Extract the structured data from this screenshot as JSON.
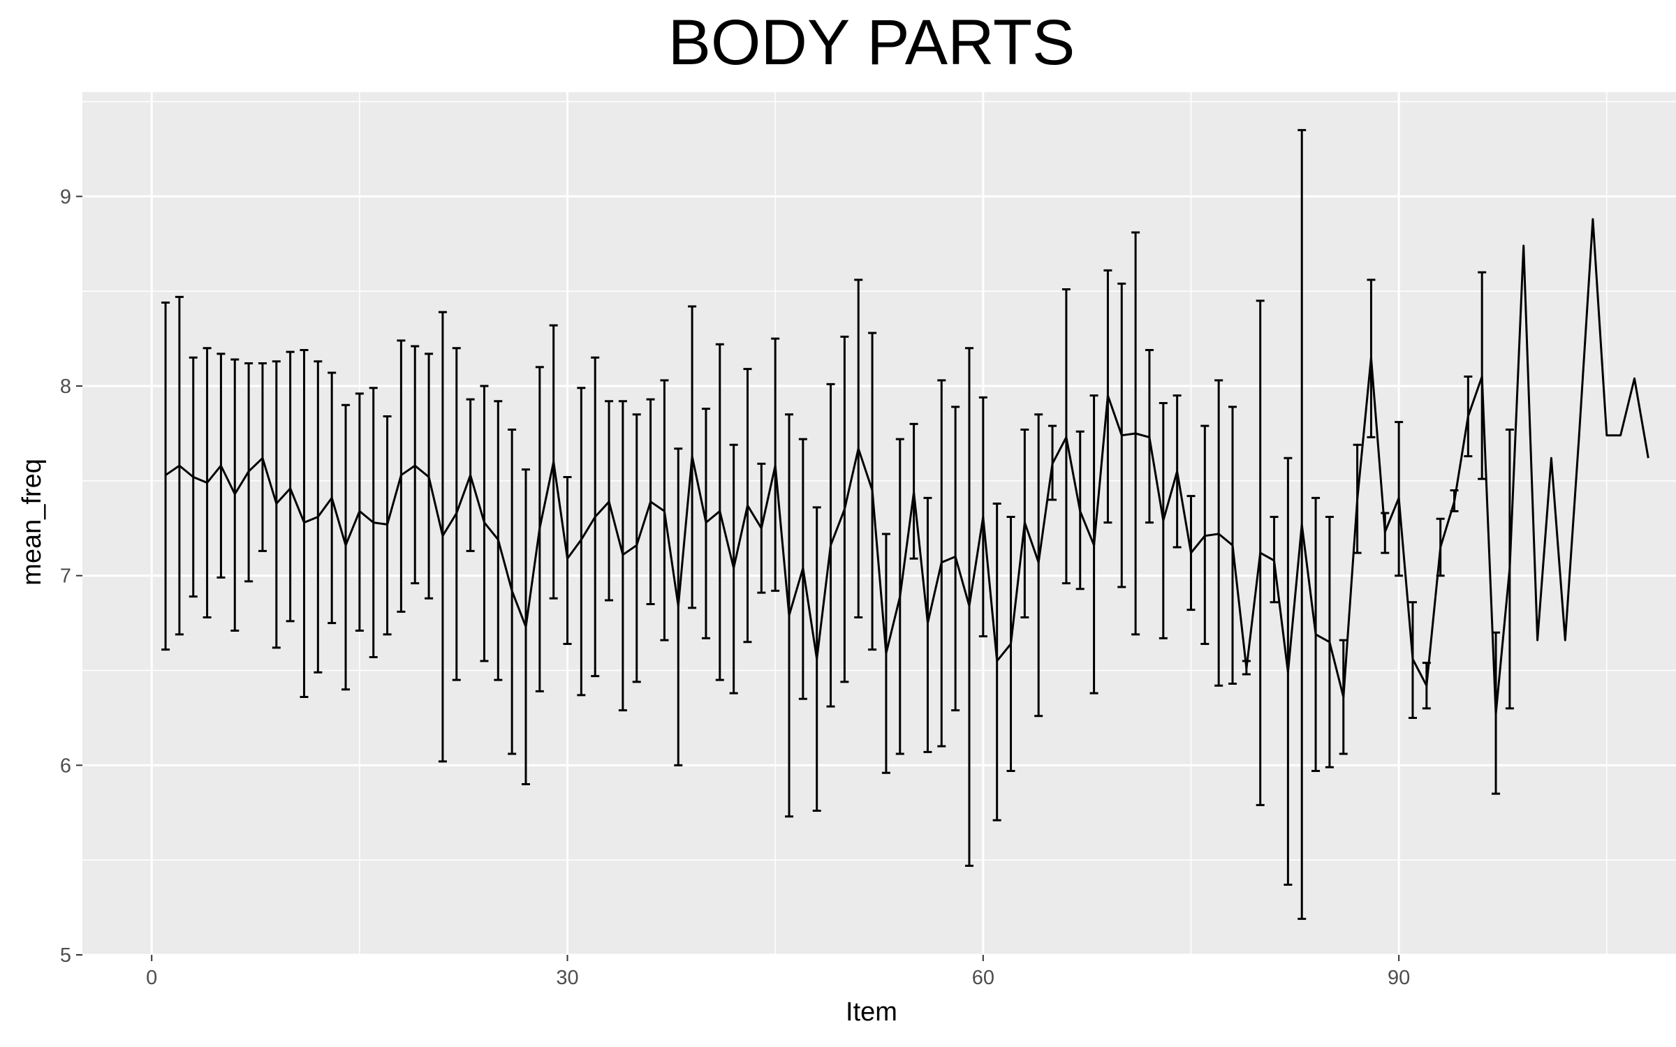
{
  "chart_data": {
    "type": "line",
    "title": "BODY PARTS",
    "xlabel": "Item",
    "ylabel": "mean_freq",
    "xlim": [
      -5,
      110
    ],
    "ylim": [
      5,
      9.55
    ],
    "x_ticks": [
      0,
      30,
      60,
      90
    ],
    "x_tick_labels": [
      "0",
      "30",
      "60",
      "90"
    ],
    "y_ticks": [
      5,
      6,
      7,
      8,
      9
    ],
    "y_tick_labels": [
      "5",
      "6",
      "7",
      "8",
      "9"
    ],
    "grid": true,
    "legend": "none",
    "colors": {
      "panel": "#ebebeb",
      "grid": "#ffffff",
      "line": "#000000",
      "tick_text": "#4d4d4d"
    },
    "series": [
      {
        "x": [
          1,
          2,
          3,
          4,
          5,
          6,
          7,
          8,
          9,
          10,
          11,
          12,
          13,
          14,
          15,
          16,
          17,
          18,
          19,
          20,
          21,
          22,
          23,
          24,
          25,
          26,
          27,
          28,
          29,
          30,
          31,
          32,
          33,
          34,
          35,
          36,
          37,
          38,
          39,
          40,
          41,
          42,
          43,
          44,
          45,
          46,
          47,
          48,
          49,
          50,
          51,
          52,
          53,
          54,
          55,
          56,
          57,
          58,
          59,
          60,
          61,
          62,
          63,
          64,
          65,
          66,
          67,
          68,
          69,
          70,
          71,
          72,
          73,
          74,
          75,
          76,
          77,
          78,
          79,
          80,
          81,
          82,
          83,
          84,
          85,
          86,
          87,
          88,
          89,
          90,
          91,
          92,
          93,
          94,
          95,
          96,
          97,
          98,
          99,
          100,
          101,
          102,
          103,
          104,
          105,
          106,
          107,
          108
        ],
        "y": [
          7.53,
          7.58,
          7.52,
          7.49,
          7.58,
          7.43,
          7.55,
          7.62,
          7.38,
          7.46,
          7.28,
          7.31,
          7.41,
          7.16,
          7.34,
          7.28,
          7.27,
          7.53,
          7.58,
          7.52,
          7.21,
          7.33,
          7.53,
          7.28,
          7.19,
          6.92,
          6.73,
          7.25,
          7.6,
          7.09,
          7.19,
          7.31,
          7.39,
          7.11,
          7.16,
          7.39,
          7.34,
          6.84,
          7.63,
          7.28,
          7.34,
          7.04,
          7.37,
          7.25,
          7.58,
          6.79,
          7.04,
          6.56,
          7.16,
          7.35,
          7.67,
          7.45,
          6.59,
          6.89,
          7.44,
          6.75,
          7.07,
          7.1,
          6.84,
          7.31,
          6.55,
          6.64,
          7.28,
          7.07,
          7.59,
          7.73,
          7.34,
          7.16,
          7.95,
          7.74,
          7.75,
          7.73,
          7.29,
          7.55,
          7.12,
          7.21,
          7.22,
          7.16,
          6.51,
          7.12,
          7.08,
          6.49,
          7.27,
          6.69,
          6.65,
          6.36,
          7.4,
          8.15,
          7.23,
          7.41,
          6.56,
          6.42,
          7.15,
          7.39,
          7.84,
          8.05,
          6.27,
          7.04,
          8.74,
          6.66,
          7.62,
          6.66,
          7.73,
          8.88,
          7.74,
          7.74,
          8.04,
          7.62
        ],
        "error_low": [
          6.61,
          6.69,
          6.89,
          6.78,
          6.99,
          6.71,
          6.97,
          7.13,
          6.62,
          6.76,
          6.36,
          6.49,
          6.75,
          6.4,
          6.71,
          6.57,
          6.69,
          6.81,
          6.96,
          6.88,
          6.02,
          6.45,
          7.13,
          6.55,
          6.45,
          6.06,
          5.9,
          6.39,
          6.88,
          6.64,
          6.37,
          6.47,
          6.87,
          6.29,
          6.44,
          6.85,
          6.66,
          6.0,
          6.83,
          6.67,
          6.45,
          6.38,
          6.65,
          6.91,
          6.92,
          5.73,
          6.35,
          5.76,
          6.31,
          6.44,
          6.78,
          6.61,
          5.96,
          6.06,
          7.09,
          6.07,
          6.1,
          6.29,
          5.47,
          6.68,
          5.71,
          5.97,
          6.78,
          6.26,
          7.4,
          6.96,
          6.93,
          6.38,
          7.28,
          6.94,
          6.69,
          7.28,
          6.67,
          7.15,
          6.82,
          6.64,
          6.42,
          6.43,
          6.48,
          5.79,
          6.86,
          5.37,
          5.19,
          5.97,
          5.99,
          6.06,
          7.12,
          7.73,
          7.12,
          7.0,
          6.25,
          6.3,
          7.0,
          7.34,
          7.63,
          7.51,
          5.85,
          6.3,
          null,
          null,
          null,
          null,
          null,
          null,
          null,
          null,
          null,
          null
        ],
        "error_high": [
          8.44,
          8.47,
          8.15,
          8.2,
          8.17,
          8.14,
          8.12,
          8.12,
          8.13,
          8.18,
          8.19,
          8.13,
          8.07,
          7.9,
          7.96,
          7.99,
          7.84,
          8.24,
          8.21,
          8.17,
          8.39,
          8.2,
          7.93,
          8.0,
          7.92,
          7.77,
          7.56,
          8.1,
          8.32,
          7.52,
          7.99,
          8.15,
          7.92,
          7.92,
          7.85,
          7.93,
          8.03,
          7.67,
          8.42,
          7.88,
          8.22,
          7.69,
          8.09,
          7.59,
          8.25,
          7.85,
          7.72,
          7.36,
          8.01,
          8.26,
          8.56,
          8.28,
          7.22,
          7.72,
          7.8,
          7.41,
          8.03,
          7.89,
          8.2,
          7.94,
          7.38,
          7.31,
          7.77,
          7.85,
          7.79,
          8.51,
          7.76,
          7.95,
          8.61,
          8.54,
          8.81,
          8.19,
          7.91,
          7.95,
          7.42,
          7.79,
          8.03,
          7.89,
          6.55,
          8.45,
          7.31,
          7.62,
          9.35,
          7.41,
          7.31,
          6.66,
          7.69,
          8.56,
          7.33,
          7.81,
          6.86,
          6.54,
          7.3,
          7.45,
          8.05,
          8.6,
          6.7,
          7.77,
          null,
          null,
          null,
          null,
          null,
          null,
          null,
          null,
          null,
          null
        ]
      }
    ]
  }
}
